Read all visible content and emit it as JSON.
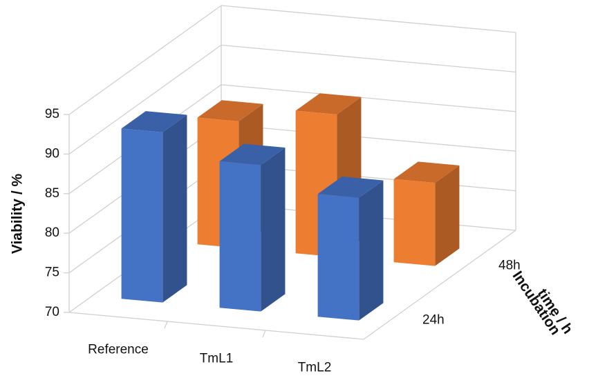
{
  "chart_data": {
    "type": "bar3d",
    "categories": [
      "Reference",
      "TmL1",
      "TmL2"
    ],
    "series": [
      {
        "name": "24h",
        "color": "#4472c4",
        "values": [
          91.5,
          88.5,
          85.5
        ]
      },
      {
        "name": "48h",
        "color": "#ed7d31",
        "values": [
          86,
          88,
          80.5
        ]
      }
    ],
    "ylabel": "Viability  / %",
    "zlabel": [
      "Incubation",
      "time / h"
    ],
    "ylim": [
      70,
      95
    ],
    "yticks": [
      70,
      75,
      80,
      85,
      90,
      95
    ],
    "grid": true
  }
}
